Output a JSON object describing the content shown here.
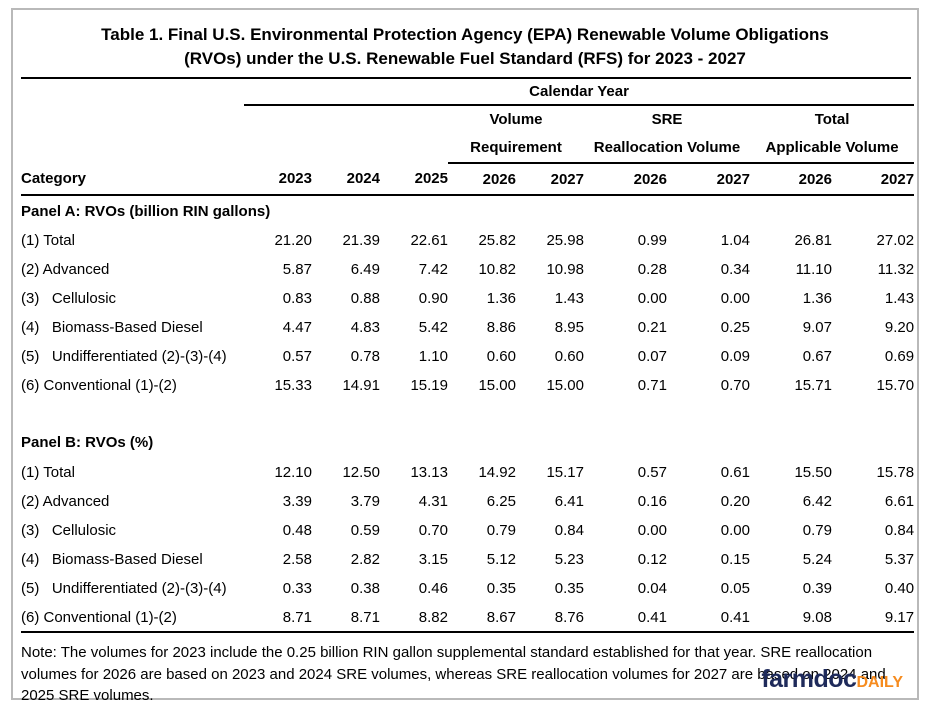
{
  "title": {
    "line1": "Table 1. Final U.S. Environmental Protection Agency (EPA) Renewable Volume Obligations",
    "line2": "(RVOs) under the U.S. Renewable Fuel Standard (RFS) for 2023 - 2027"
  },
  "header": {
    "calendar_year": "Calendar Year",
    "category": "Category",
    "groups": [
      {
        "line1": "Volume",
        "line2": "Requirement"
      },
      {
        "line1": "SRE",
        "line2": "Reallocation Volume"
      },
      {
        "line1": "Total",
        "line2": "Applicable Volume"
      }
    ],
    "years": [
      "2023",
      "2024",
      "2025",
      "2026",
      "2027",
      "2026",
      "2027",
      "2026",
      "2027"
    ]
  },
  "chart_data": {
    "type": "table",
    "title": "Table 1. Final U.S. Environmental Protection Agency (EPA) Renewable Volume Obligations (RVOs) under the U.S. Renewable Fuel Standard (RFS) for 2023 - 2027",
    "column_groups": [
      "Calendar Year"
    ],
    "columns": [
      "Category",
      "2023",
      "2024",
      "2025",
      "Volume Requirement 2026",
      "Volume Requirement 2027",
      "SRE Reallocation Volume 2026",
      "SRE Reallocation Volume 2027",
      "Total Applicable Volume 2026",
      "Total Applicable Volume 2027"
    ],
    "panels": [
      {
        "title": "Panel A: RVOs (billion RIN gallons)",
        "rows": [
          {
            "label": "(1) Total",
            "values": [
              "21.20",
              "21.39",
              "22.61",
              "25.82",
              "25.98",
              "0.99",
              "1.04",
              "26.81",
              "27.02"
            ]
          },
          {
            "label": "(2) Advanced",
            "values": [
              "5.87",
              "6.49",
              "7.42",
              "10.82",
              "10.98",
              "0.28",
              "0.34",
              "11.10",
              "11.32"
            ]
          },
          {
            "label": "(3)   Cellulosic",
            "values": [
              "0.83",
              "0.88",
              "0.90",
              "1.36",
              "1.43",
              "0.00",
              "0.00",
              "1.36",
              "1.43"
            ]
          },
          {
            "label": "(4)   Biomass-Based Diesel",
            "values": [
              "4.47",
              "4.83",
              "5.42",
              "8.86",
              "8.95",
              "0.21",
              "0.25",
              "9.07",
              "9.20"
            ]
          },
          {
            "label": "(5)   Undifferentiated (2)-(3)-(4)",
            "values": [
              "0.57",
              "0.78",
              "1.10",
              "0.60",
              "0.60",
              "0.07",
              "0.09",
              "0.67",
              "0.69"
            ]
          },
          {
            "label": "(6) Conventional (1)-(2)",
            "values": [
              "15.33",
              "14.91",
              "15.19",
              "15.00",
              "15.00",
              "0.71",
              "0.70",
              "15.71",
              "15.70"
            ]
          }
        ]
      },
      {
        "title": "Panel B: RVOs (%)",
        "rows": [
          {
            "label": "(1) Total",
            "values": [
              "12.10",
              "12.50",
              "13.13",
              "14.92",
              "15.17",
              "0.57",
              "0.61",
              "15.50",
              "15.78"
            ]
          },
          {
            "label": "(2) Advanced",
            "values": [
              "3.39",
              "3.79",
              "4.31",
              "6.25",
              "6.41",
              "0.16",
              "0.20",
              "6.42",
              "6.61"
            ]
          },
          {
            "label": "(3)   Cellulosic",
            "values": [
              "0.48",
              "0.59",
              "0.70",
              "0.79",
              "0.84",
              "0.00",
              "0.00",
              "0.79",
              "0.84"
            ]
          },
          {
            "label": "(4)   Biomass-Based Diesel",
            "values": [
              "2.58",
              "2.82",
              "3.15",
              "5.12",
              "5.23",
              "0.12",
              "0.15",
              "5.24",
              "5.37"
            ]
          },
          {
            "label": "(5)   Undifferentiated (2)-(3)-(4)",
            "values": [
              "0.33",
              "0.38",
              "0.46",
              "0.35",
              "0.35",
              "0.04",
              "0.05",
              "0.39",
              "0.40"
            ]
          },
          {
            "label": "(6) Conventional (1)-(2)",
            "values": [
              "8.71",
              "8.71",
              "8.82",
              "8.67",
              "8.76",
              "0.41",
              "0.41",
              "9.08",
              "9.17"
            ]
          }
        ]
      }
    ]
  },
  "note": "Note: The volumes for 2023 include the 0.25 billion RIN gallon supplemental standard established for that year. SRE reallocation volumes for 2026 are based on 2023 and 2024 SRE volumes, whereas SRE reallocation volumes for 2027 are based on 2024 and 2025 SRE volumes.",
  "logo": {
    "brand": "farmdoc",
    "suffix": "DAILY"
  },
  "colors": {
    "brand_navy": "#1e2a5a",
    "brand_orange": "#f68b1e",
    "rule_black": "#000000",
    "frame_gray": "#b9b9b9"
  }
}
